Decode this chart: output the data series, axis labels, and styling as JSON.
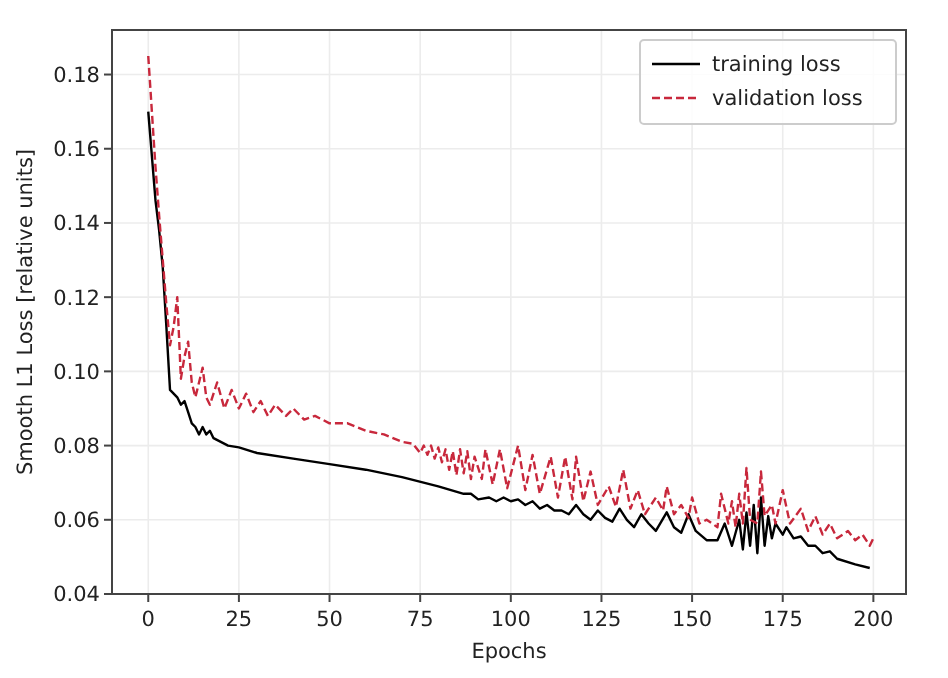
{
  "chart_data": {
    "type": "line",
    "xlabel": "Epochs",
    "ylabel": "Smooth L1 Loss [relative units]",
    "xlim": [
      -10,
      209
    ],
    "ylim": [
      0.04,
      0.192
    ],
    "xticks": [
      0,
      25,
      50,
      75,
      100,
      125,
      150,
      175,
      200
    ],
    "yticks": [
      {
        "value": 0.04,
        "label": "0.04"
      },
      {
        "value": 0.06,
        "label": "0.06"
      },
      {
        "value": 0.08,
        "label": "0.08"
      },
      {
        "value": 0.1,
        "label": "0.10"
      },
      {
        "value": 0.12,
        "label": "0.12"
      },
      {
        "value": 0.14,
        "label": "0.14"
      },
      {
        "value": 0.16,
        "label": "0.16"
      },
      {
        "value": 0.18,
        "label": "0.18"
      }
    ],
    "grid": true,
    "legend": "top right",
    "series": [
      {
        "name": "training loss",
        "color": "#000000",
        "line_style": "solid",
        "x": [
          0,
          1,
          2,
          3,
          4,
          5,
          6,
          7,
          8,
          9,
          10,
          11,
          12,
          13,
          14,
          15,
          16,
          17,
          18,
          20,
          22,
          25,
          30,
          40,
          50,
          60,
          70,
          80,
          87,
          89,
          91,
          94,
          96,
          98,
          100,
          102,
          104,
          106,
          108,
          110,
          112,
          114,
          116,
          118,
          120,
          122,
          124,
          126,
          128,
          130,
          132,
          134,
          136,
          138,
          140,
          143,
          145,
          147,
          149,
          151,
          154,
          157,
          159,
          161,
          163,
          164,
          165,
          166,
          167,
          168,
          169,
          170,
          171,
          172,
          173,
          175,
          176,
          178,
          180,
          182,
          184,
          186,
          188,
          190,
          195,
          199
        ],
        "values": [
          0.17,
          0.158,
          0.146,
          0.138,
          0.128,
          0.112,
          0.095,
          0.094,
          0.093,
          0.091,
          0.092,
          0.089,
          0.086,
          0.085,
          0.083,
          0.085,
          0.083,
          0.084,
          0.082,
          0.081,
          0.08,
          0.0795,
          0.078,
          0.0765,
          0.075,
          0.0735,
          0.0715,
          0.069,
          0.067,
          0.067,
          0.0655,
          0.066,
          0.065,
          0.066,
          0.065,
          0.0655,
          0.064,
          0.065,
          0.063,
          0.064,
          0.0625,
          0.0625,
          0.0615,
          0.064,
          0.0615,
          0.06,
          0.0625,
          0.0605,
          0.0595,
          0.063,
          0.06,
          0.058,
          0.0615,
          0.059,
          0.057,
          0.062,
          0.058,
          0.0565,
          0.0615,
          0.057,
          0.0545,
          0.0545,
          0.059,
          0.053,
          0.06,
          0.052,
          0.062,
          0.053,
          0.064,
          0.051,
          0.066,
          0.053,
          0.061,
          0.055,
          0.059,
          0.056,
          0.058,
          0.055,
          0.0555,
          0.053,
          0.053,
          0.051,
          0.0515,
          0.0495,
          0.048,
          0.047
        ]
      },
      {
        "name": "validation loss",
        "color": "#c8283c",
        "line_style": "dashed",
        "x": [
          0,
          1,
          2,
          3,
          4,
          5,
          6,
          7,
          8,
          9,
          10,
          11,
          12,
          13,
          14,
          15,
          16,
          17,
          18,
          19,
          21,
          23,
          25,
          27,
          29,
          31,
          33,
          35,
          38,
          40,
          43,
          46,
          50,
          55,
          60,
          65,
          70,
          73,
          75,
          76,
          77,
          78,
          79,
          80,
          81,
          82,
          83,
          84,
          85,
          86,
          87,
          88,
          89,
          90,
          92,
          93,
          95,
          97,
          99,
          102,
          104,
          106,
          108,
          111,
          113,
          115,
          117,
          118,
          120,
          122,
          124,
          127,
          129,
          131,
          133,
          135,
          137,
          140,
          142,
          143,
          145,
          147,
          149,
          150,
          152,
          154,
          157,
          158,
          160,
          161,
          162,
          163,
          164,
          165,
          166,
          168,
          169,
          170,
          172,
          173,
          175,
          177,
          180,
          182,
          184,
          186,
          188,
          190,
          193,
          195,
          197,
          199,
          200
        ],
        "values": [
          0.185,
          0.17,
          0.155,
          0.142,
          0.13,
          0.118,
          0.107,
          0.112,
          0.12,
          0.098,
          0.104,
          0.108,
          0.097,
          0.093,
          0.097,
          0.101,
          0.093,
          0.091,
          0.094,
          0.097,
          0.09,
          0.095,
          0.09,
          0.094,
          0.089,
          0.092,
          0.088,
          0.091,
          0.088,
          0.09,
          0.087,
          0.088,
          0.086,
          0.086,
          0.084,
          0.083,
          0.081,
          0.0805,
          0.078,
          0.08,
          0.0775,
          0.08,
          0.0765,
          0.0795,
          0.0755,
          0.079,
          0.0735,
          0.0785,
          0.072,
          0.079,
          0.0725,
          0.0785,
          0.071,
          0.077,
          0.071,
          0.079,
          0.0695,
          0.079,
          0.0685,
          0.08,
          0.068,
          0.0775,
          0.067,
          0.077,
          0.066,
          0.077,
          0.0655,
          0.077,
          0.065,
          0.073,
          0.064,
          0.069,
          0.0635,
          0.0735,
          0.063,
          0.068,
          0.0615,
          0.066,
          0.0625,
          0.069,
          0.0615,
          0.064,
          0.0605,
          0.066,
          0.059,
          0.06,
          0.058,
          0.067,
          0.059,
          0.065,
          0.058,
          0.067,
          0.059,
          0.074,
          0.06,
          0.059,
          0.073,
          0.061,
          0.064,
          0.059,
          0.068,
          0.059,
          0.063,
          0.057,
          0.061,
          0.056,
          0.059,
          0.055,
          0.057,
          0.0545,
          0.056,
          0.053,
          0.055
        ]
      }
    ]
  }
}
